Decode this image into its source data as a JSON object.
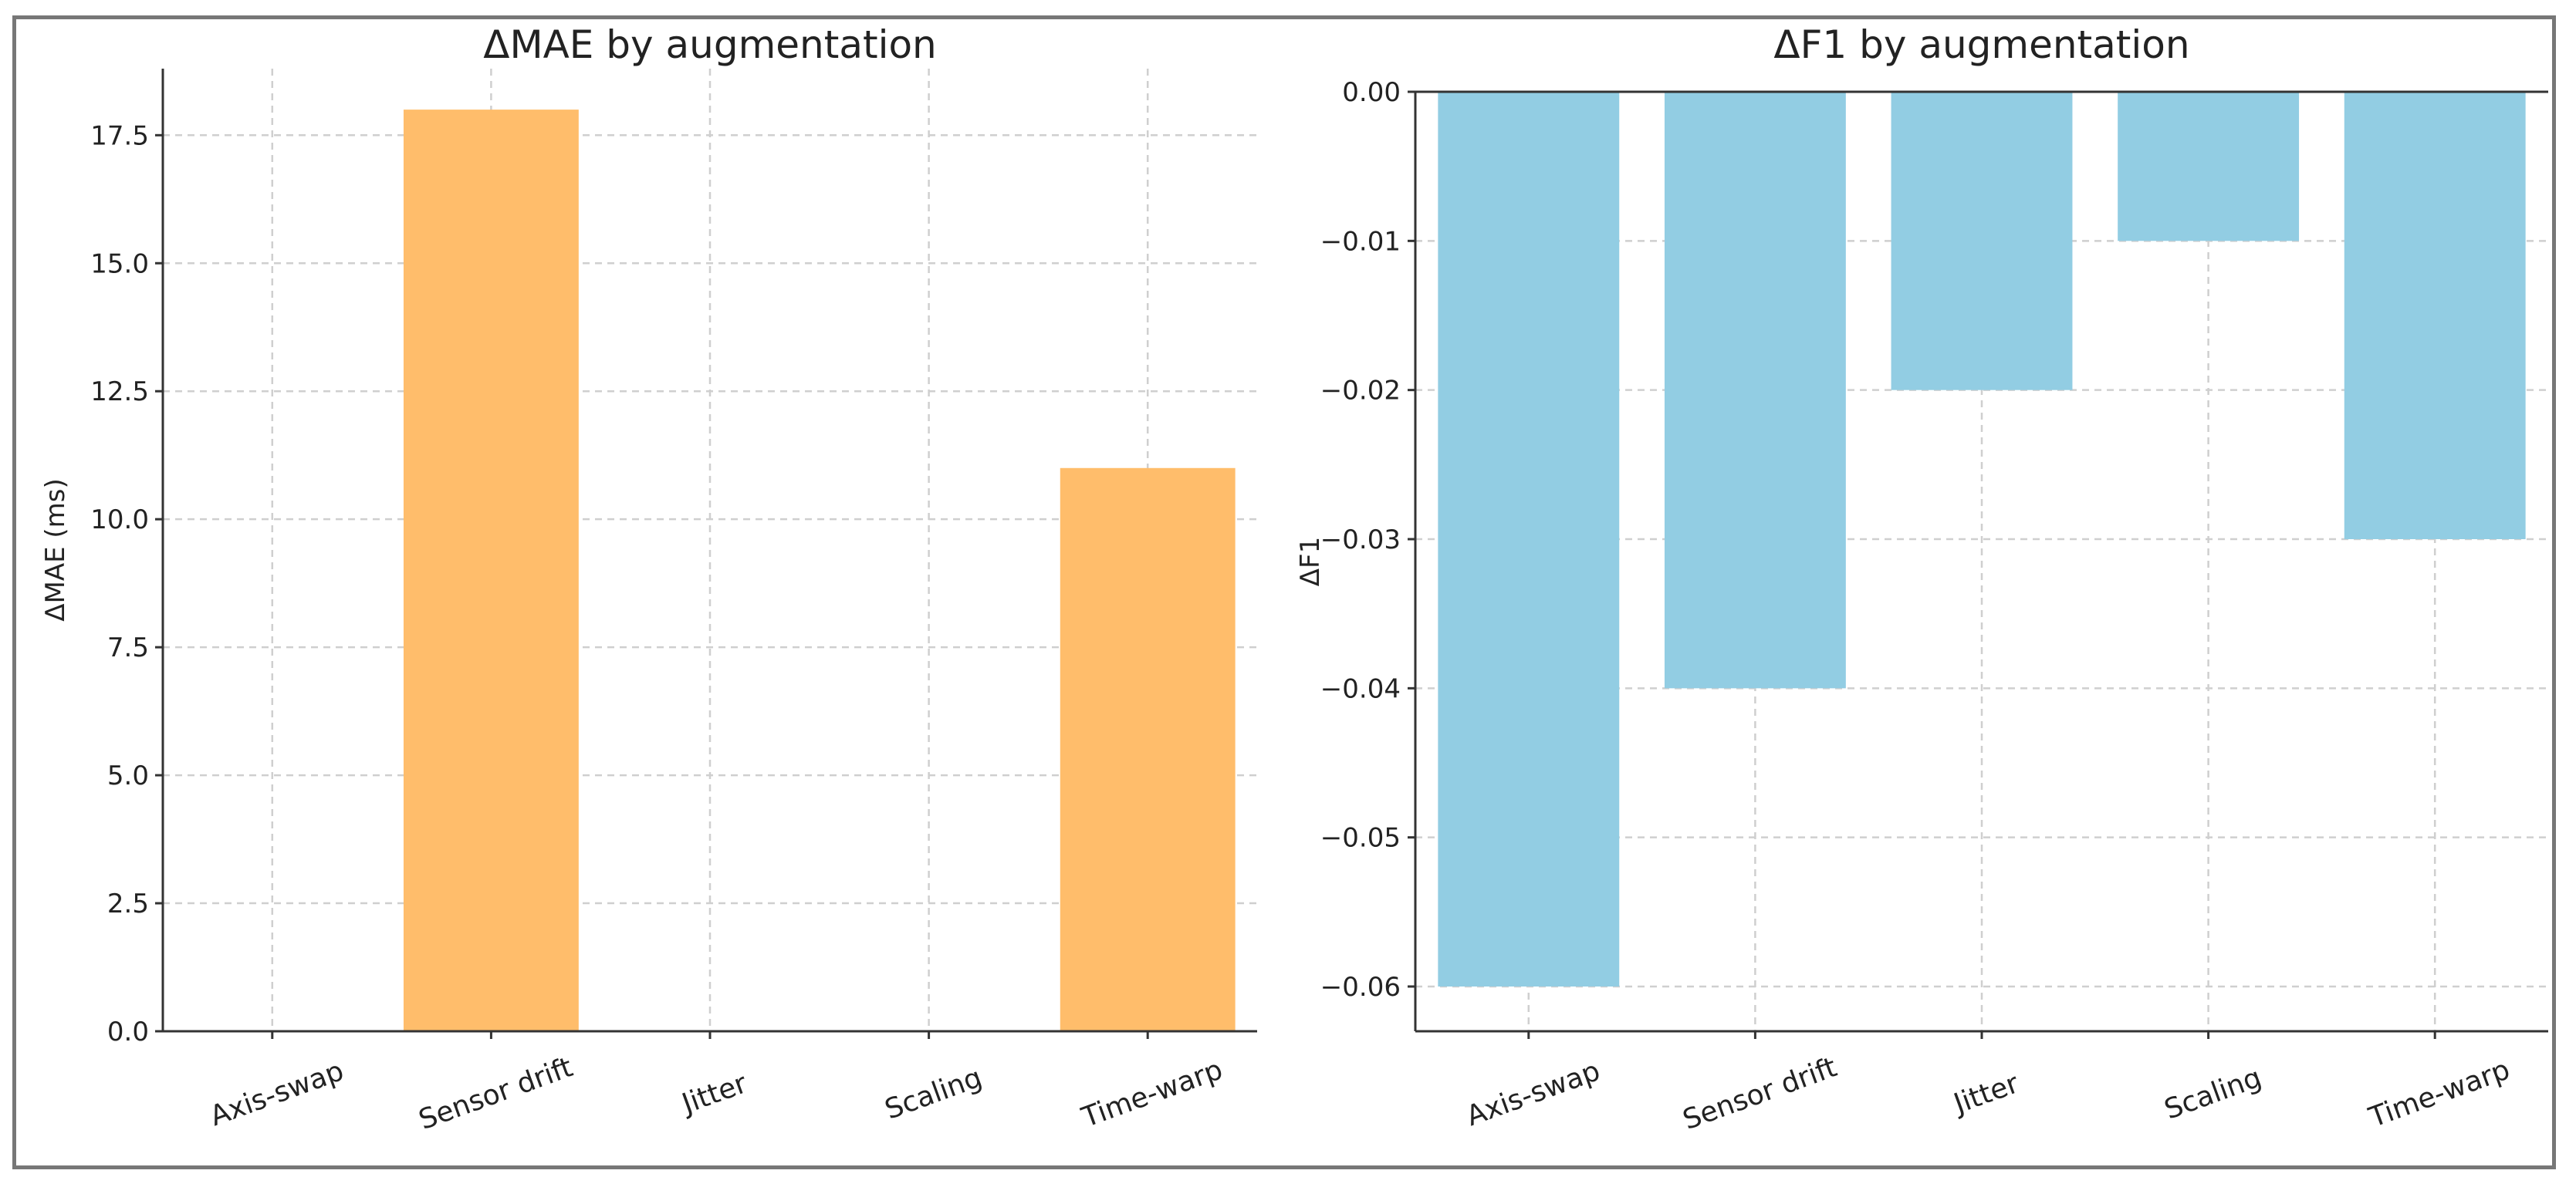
{
  "chart_data": [
    {
      "type": "bar",
      "title": "ΔMAE by augmentation",
      "xlabel": "",
      "ylabel": "ΔMAE (ms)",
      "categories": [
        "Axis-swap",
        "Sensor drift",
        "Jitter",
        "Scaling",
        "Time-warp"
      ],
      "values": [
        0,
        18,
        0,
        0,
        11
      ],
      "ylim": [
        0,
        18.8
      ],
      "yticks": [
        0.0,
        2.5,
        5.0,
        7.5,
        10.0,
        12.5,
        15.0,
        17.5
      ],
      "ytick_labels": [
        "0.0",
        "2.5",
        "5.0",
        "7.5",
        "10.0",
        "12.5",
        "15.0",
        "17.5"
      ],
      "color": "#ffbd6b",
      "grid": true
    },
    {
      "type": "bar",
      "title": "ΔF1 by augmentation",
      "xlabel": "",
      "ylabel": "ΔF1",
      "categories": [
        "Axis-swap",
        "Sensor drift",
        "Jitter",
        "Scaling",
        "Time-warp"
      ],
      "values": [
        -0.06,
        -0.04,
        -0.02,
        -0.01,
        -0.03
      ],
      "ylim": [
        -0.063,
        0
      ],
      "yticks": [
        0.0,
        -0.01,
        -0.02,
        -0.03,
        -0.04,
        -0.05,
        -0.06
      ],
      "ytick_labels": [
        "0.00",
        "-0.01",
        "-0.02",
        "-0.03",
        "-0.04",
        "-0.05",
        "-0.06"
      ],
      "color": "#92cde3",
      "grid": true
    }
  ]
}
